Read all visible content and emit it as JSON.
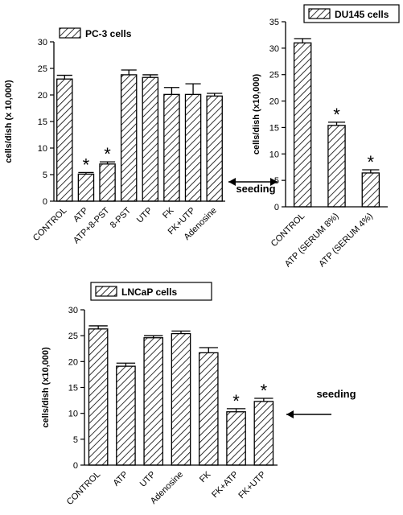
{
  "chart_data": [
    {
      "type": "bar",
      "ylabel": "cells/dish (x 10,000)",
      "categories": [
        "CONTROL",
        "ATP",
        "ATP+8-PST",
        "8-PST",
        "UTP",
        "FK",
        "FK+UTP",
        "Adenosine"
      ],
      "series": [
        {
          "name": "PC-3 cells",
          "color": "#000000",
          "values": [
            23,
            5.1,
            7,
            23.8,
            23.3,
            20.1,
            20.1,
            19.8
          ],
          "errors": [
            0.7,
            0.3,
            0.4,
            0.9,
            0.5,
            1.3,
            2,
            0.5
          ]
        }
      ],
      "markers": [
        null,
        "*",
        "*",
        null,
        null,
        null,
        null,
        null
      ],
      "annotation": "seeding",
      "ylim": [
        0,
        30
      ],
      "yticks": [
        0,
        5,
        10,
        15,
        20,
        25,
        30
      ]
    },
    {
      "type": "bar",
      "ylabel": "cells/dish (x10,000)",
      "categories": [
        "CONTROL",
        "ATP (SERUM 8%)",
        "ATP (SERUM 4%)"
      ],
      "series": [
        {
          "name": "DU145 cells",
          "color": "#000000",
          "values": [
            31,
            15.4,
            6.4
          ],
          "errors": [
            0.8,
            0.6,
            0.6
          ]
        }
      ],
      "markers": [
        null,
        "*",
        "*"
      ],
      "ylim": [
        0,
        35
      ],
      "yticks": [
        0,
        5,
        10,
        15,
        20,
        25,
        30,
        35
      ]
    },
    {
      "type": "bar",
      "ylabel": "cells/dish (x10,000)",
      "categories": [
        "CONTROL",
        "ATP",
        "UTP",
        "Adenosine",
        "FK",
        "FK+ATP",
        "FK+UTP"
      ],
      "series": [
        {
          "name": "LNCaP cells",
          "color": "#000000",
          "values": [
            26.3,
            19.1,
            24.6,
            25.4,
            21.7,
            10.3,
            12.3
          ],
          "errors": [
            0.6,
            0.6,
            0.4,
            0.5,
            1,
            0.6,
            0.6
          ]
        }
      ],
      "markers": [
        null,
        null,
        null,
        null,
        null,
        "*",
        "*"
      ],
      "annotation": "seeding",
      "ylim": [
        0,
        30
      ],
      "yticks": [
        0,
        5,
        10,
        15,
        20,
        25,
        30
      ]
    }
  ]
}
